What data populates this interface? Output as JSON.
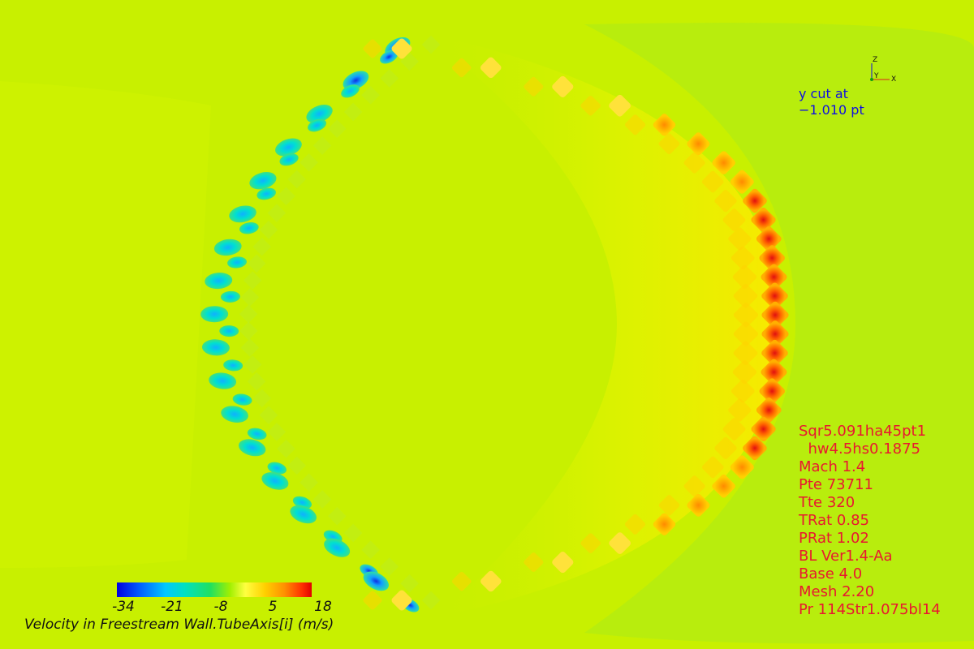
{
  "plot": {
    "cut_label_line1": "y cut at",
    "cut_label_line2": "−1.010 pt"
  },
  "axes_triad": {
    "z": "Z",
    "y": "Y",
    "x": "X"
  },
  "parameters": [
    "Sqr5.091ha45pt1",
    "  hw4.5hs0.1875",
    "Mach 1.4",
    "Pte 73711",
    "Tte 320",
    "TRat 0.85",
    "PRat 1.02",
    "BL Ver1.4-Aa",
    "Base 4.0",
    "Mesh 2.20",
    "Pr 114Str1.075bl14"
  ],
  "legend": {
    "ticks": [
      "-34",
      "-21",
      "-8",
      "5",
      "18"
    ],
    "title": "Velocity in Freestream Wall.TubeAxis[i] (m/s)",
    "colors": [
      "#0000e0",
      "#00c8ff",
      "#20e060",
      "#ffff40",
      "#ff9000",
      "#e00000"
    ]
  },
  "colors": {
    "background": "#c8f000",
    "cut_label": "#1010e0",
    "parameter_text": "#e81830"
  }
}
